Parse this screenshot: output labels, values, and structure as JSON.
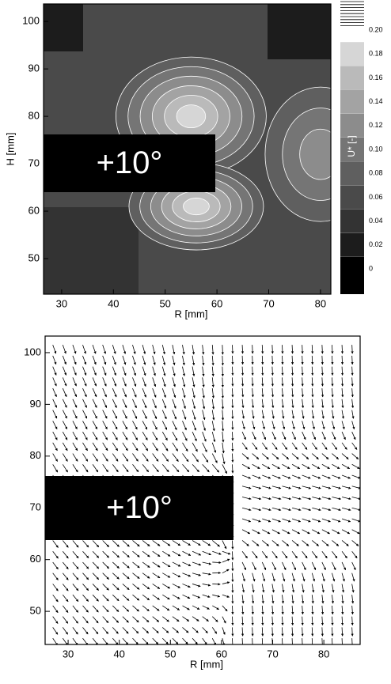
{
  "chart_data": [
    {
      "type": "contour",
      "xlabel": "R [mm]",
      "ylabel": "H [mm]",
      "xlim": [
        26.5,
        82
      ],
      "ylim": [
        42.5,
        103.7
      ],
      "xticks": [
        30,
        40,
        50,
        60,
        70,
        80
      ],
      "yticks": [
        50,
        60,
        70,
        80,
        90,
        100
      ],
      "annotation": "+10°",
      "colorbar_label": "U* [-]",
      "colorbar_levels": [
        0,
        0.02,
        0.04,
        0.06,
        0.08,
        {
          "value": 0.1,
          "label": "0.10"
        },
        0.12,
        0.14,
        0.16,
        0.18,
        {
          "value": 0.2,
          "label": "0.20"
        }
      ],
      "colorbar_colors": [
        "#000000",
        "#1c1c1c",
        "#333333",
        "#4a4a4a",
        "#5f5f5f",
        "#757575",
        "#8c8c8c",
        "#a3a3a3",
        "#bababa",
        "#d6d6d6",
        "#ffffff"
      ]
    },
    {
      "type": "quiver",
      "xlabel": "R [mm]",
      "xlim": [
        25.5,
        87.1
      ],
      "ylim": [
        43.6,
        103.2
      ],
      "xticks": [
        30,
        40,
        50,
        60,
        70,
        80
      ],
      "yticks": [
        50,
        60,
        70,
        80,
        90,
        100
      ],
      "annotation": "+10°"
    }
  ]
}
